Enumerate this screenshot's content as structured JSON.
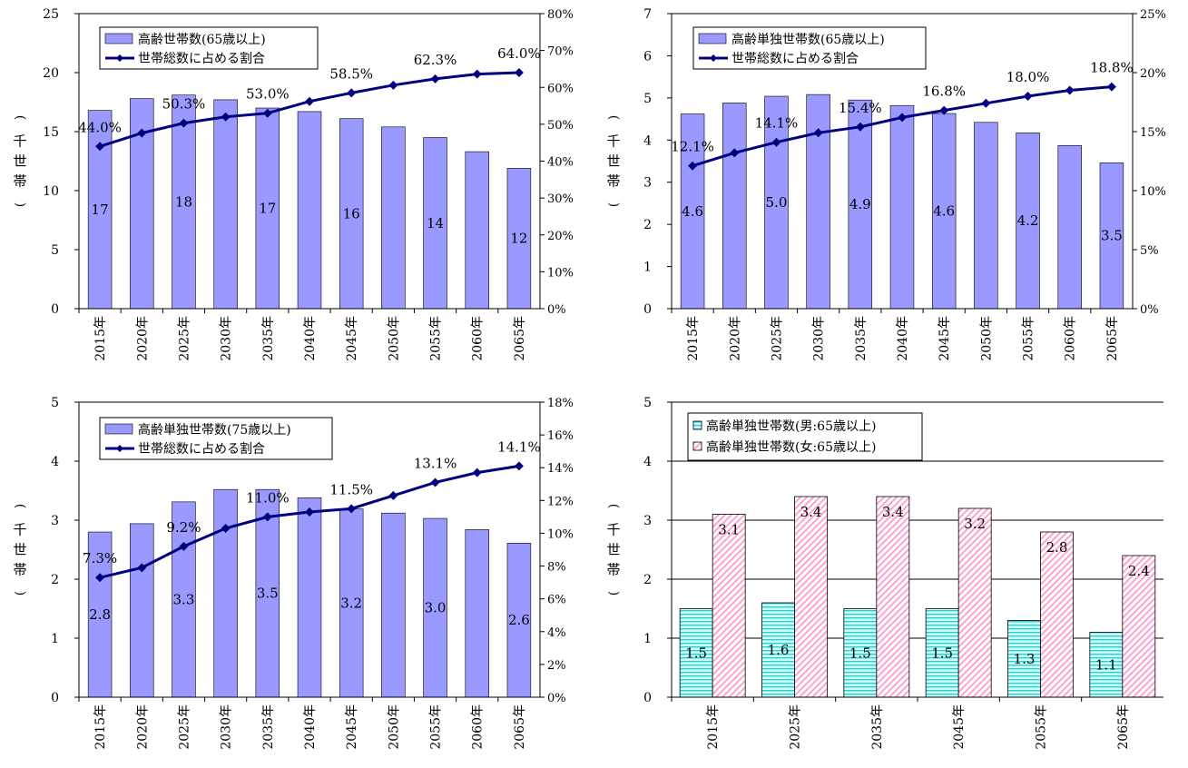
{
  "unit_label": "(千世帯)",
  "chart_data": [
    {
      "type": "bar+line",
      "categories": [
        "2015年",
        "2020年",
        "2025年",
        "2030年",
        "2035年",
        "2040年",
        "2045年",
        "2050年",
        "2055年",
        "2060年",
        "2065年"
      ],
      "ylim": [
        0,
        25
      ],
      "yticks": [
        0,
        5,
        10,
        15,
        20,
        25
      ],
      "y2lim": [
        0,
        0.8
      ],
      "y2ticks": [
        "0%",
        "10%",
        "20%",
        "30%",
        "40%",
        "50%",
        "60%",
        "70%",
        "80%"
      ],
      "legend": [
        "高齢世帯数(65歳以上)",
        "世帯総数に占める割合"
      ],
      "bars": [
        16.8,
        17.8,
        18.1,
        17.7,
        17.0,
        16.7,
        16.1,
        15.4,
        14.5,
        13.3,
        11.9
      ],
      "bar_labels": [
        "17",
        "",
        "18",
        "",
        "17",
        "",
        "16",
        "",
        "14",
        "",
        "12"
      ],
      "line": [
        0.44,
        0.476,
        0.503,
        0.52,
        0.53,
        0.562,
        0.585,
        0.606,
        0.623,
        0.636,
        0.64
      ],
      "line_labels": [
        "44.0%",
        "",
        "50.3%",
        "",
        "53.0%",
        "",
        "58.5%",
        "",
        "62.3%",
        "",
        "64.0%"
      ]
    },
    {
      "type": "bar+line",
      "categories": [
        "2015年",
        "2020年",
        "2025年",
        "2030年",
        "2035年",
        "2040年",
        "2045年",
        "2050年",
        "2055年",
        "2060年",
        "2065年"
      ],
      "ylim": [
        0,
        7
      ],
      "yticks": [
        0,
        1,
        2,
        3,
        4,
        5,
        6,
        7
      ],
      "y2lim": [
        0,
        0.25
      ],
      "y2ticks": [
        "0%",
        "5%",
        "10%",
        "15%",
        "20%",
        "25%"
      ],
      "legend": [
        "高齢単独世帯数(65歳以上)",
        "世帯総数に占める割合"
      ],
      "bars": [
        4.62,
        4.88,
        5.04,
        5.08,
        4.95,
        4.82,
        4.63,
        4.42,
        4.17,
        3.87,
        3.46
      ],
      "bar_labels": [
        "4.6",
        "",
        "5.0",
        "",
        "4.9",
        "",
        "4.6",
        "",
        "4.2",
        "",
        "3.5"
      ],
      "line": [
        0.121,
        0.132,
        0.141,
        0.149,
        0.154,
        0.162,
        0.168,
        0.174,
        0.18,
        0.185,
        0.188
      ],
      "line_labels": [
        "12.1%",
        "",
        "14.1%",
        "",
        "15.4%",
        "",
        "16.8%",
        "",
        "18.0%",
        "",
        "18.8%"
      ]
    },
    {
      "type": "bar+line",
      "categories": [
        "2015年",
        "2020年",
        "2025年",
        "2030年",
        "2035年",
        "2040年",
        "2045年",
        "2050年",
        "2055年",
        "2060年",
        "2065年"
      ],
      "ylim": [
        0,
        5
      ],
      "yticks": [
        0,
        1,
        2,
        3,
        4,
        5
      ],
      "y2lim": [
        0,
        0.18
      ],
      "y2ticks": [
        "0%",
        "2%",
        "4%",
        "6%",
        "8%",
        "10%",
        "12%",
        "14%",
        "16%",
        "18%"
      ],
      "legend": [
        "高齢単独世帯数(75歳以上)",
        "世帯総数に占める割合"
      ],
      "bars": [
        2.8,
        2.94,
        3.31,
        3.52,
        3.52,
        3.38,
        3.19,
        3.12,
        3.03,
        2.84,
        2.61
      ],
      "bar_labels": [
        "2.8",
        "",
        "3.3",
        "",
        "3.5",
        "",
        "3.2",
        "",
        "3.0",
        "",
        "2.6"
      ],
      "line": [
        0.073,
        0.079,
        0.092,
        0.103,
        0.11,
        0.113,
        0.115,
        0.123,
        0.131,
        0.137,
        0.141
      ],
      "line_labels": [
        "7.3%",
        "",
        "9.2%",
        "",
        "11.0%",
        "",
        "11.5%",
        "",
        "13.1%",
        "",
        "14.1%"
      ]
    },
    {
      "type": "bar",
      "categories": [
        "2015年",
        "2025年",
        "2035年",
        "2045年",
        "2055年",
        "2065年"
      ],
      "ylim": [
        0,
        5
      ],
      "yticks": [
        0,
        1,
        2,
        3,
        4,
        5
      ],
      "grid": true,
      "legend": [
        "高齢単独世帯数(男:65歳以上)",
        "高齢単独世帯数(女:65歳以上)"
      ],
      "series": [
        {
          "name": "高齢単独世帯数(男:65歳以上)",
          "values": [
            1.5,
            1.6,
            1.5,
            1.5,
            1.3,
            1.1
          ],
          "labels": [
            "1.5",
            "1.6",
            "1.5",
            "1.5",
            "1.3",
            "1.1"
          ]
        },
        {
          "name": "高齢単独世帯数(女:65歳以上)",
          "values": [
            3.1,
            3.4,
            3.4,
            3.2,
            2.8,
            2.4
          ],
          "labels": [
            "3.1",
            "3.4",
            "3.4",
            "3.2",
            "2.8",
            "2.4"
          ]
        }
      ]
    }
  ],
  "colors": {
    "bar_fill": "#9999ff",
    "line": "#000080",
    "male_stripe": "#33cccc",
    "male_bg": "#ccffff",
    "female_stripe": "#ff99cc",
    "female_bg": "#ffffff"
  }
}
